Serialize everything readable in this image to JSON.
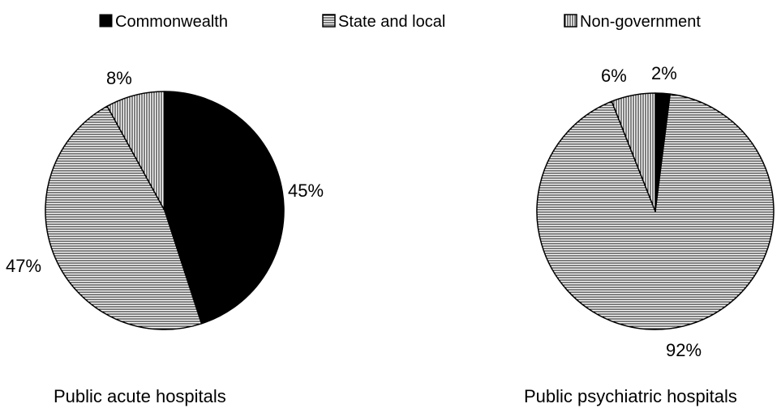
{
  "chart_data": [
    {
      "type": "pie",
      "title": "Public acute hospitals",
      "categories": [
        "Commonwealth",
        "State and local",
        "Non-government"
      ],
      "values": [
        45,
        47,
        8
      ],
      "labels": [
        "45%",
        "47%",
        "8%"
      ]
    },
    {
      "type": "pie",
      "title": "Public psychiatric hospitals",
      "categories": [
        "Commonwealth",
        "State and local",
        "Non-government"
      ],
      "values": [
        2,
        92,
        6
      ],
      "labels": [
        "2%",
        "92%",
        "6%"
      ]
    }
  ],
  "legend": {
    "placement": "top",
    "items": [
      {
        "label": "Commonwealth",
        "fill": "solid-black"
      },
      {
        "label": "State and local",
        "fill": "horizontal-lines"
      },
      {
        "label": "Non-government",
        "fill": "vertical-lines"
      }
    ]
  },
  "colors": {
    "ink": "#000000",
    "background": "#ffffff"
  }
}
